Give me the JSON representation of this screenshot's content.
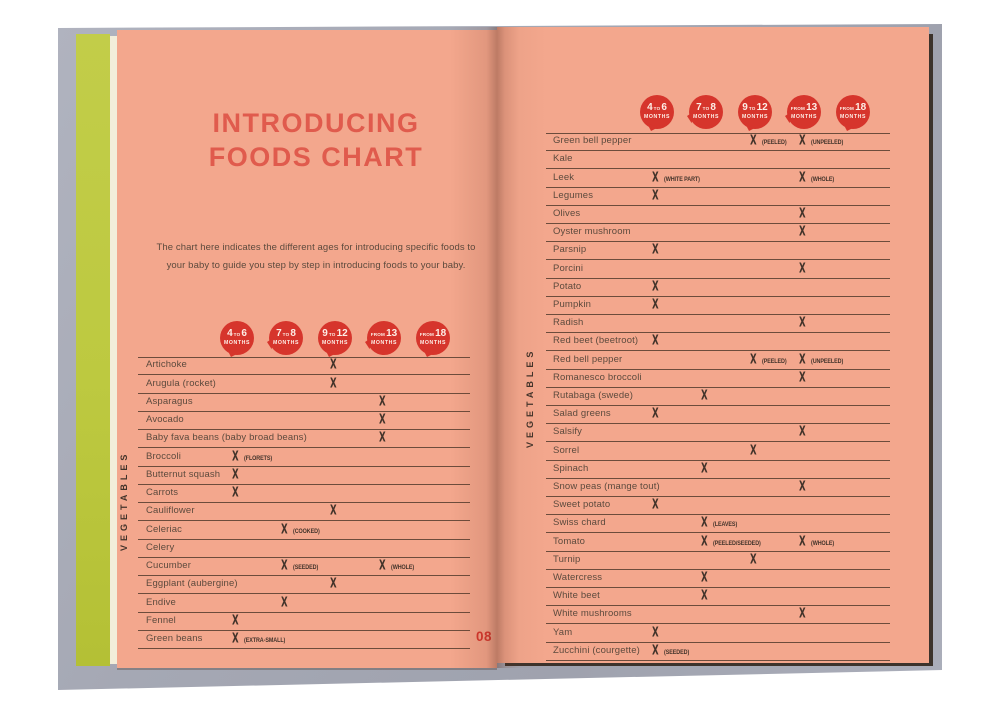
{
  "colors": {
    "cover_gray": "#a7aab6",
    "strip_green": "#bdc940",
    "cream": "#f2eeda",
    "page_salmon": "#f3a78d",
    "accent_red": "#d6352c",
    "title_red": "#e05b4d",
    "text_brown": "#5c4a3d",
    "ink": "#42332a"
  },
  "mark_symbol": "X",
  "book": {
    "left_page": {
      "title_line1": "INTRODUCING",
      "title_line2": "FOODS CHART",
      "intro_text": "The chart here indicates the different ages for introducing specific foods to your baby to guide you step by step in introducing foods to your baby.",
      "section_label": "VEGETABLES",
      "page_number": "08",
      "columns": [
        {
          "line1": "4 TO 6",
          "line2": "MONTHS"
        },
        {
          "line1": "7 TO 8",
          "line2": "MONTHS"
        },
        {
          "line1": "9 TO 12",
          "line2": "MONTHS"
        },
        {
          "line1": "FROM 13",
          "line2": "MONTHS"
        },
        {
          "line1": "FROM 18",
          "line2": "MONTHS"
        }
      ],
      "rows": [
        {
          "label": "Artichoke",
          "marks": [
            {
              "col": 2,
              "note": ""
            }
          ]
        },
        {
          "label": "Arugula (rocket)",
          "marks": [
            {
              "col": 2,
              "note": ""
            }
          ]
        },
        {
          "label": "Asparagus",
          "marks": [
            {
              "col": 3,
              "note": ""
            }
          ]
        },
        {
          "label": "Avocado",
          "marks": [
            {
              "col": 3,
              "note": ""
            }
          ]
        },
        {
          "label": "Baby fava beans (baby broad beans)",
          "marks": [
            {
              "col": 3,
              "note": ""
            }
          ]
        },
        {
          "label": "Broccoli",
          "marks": [
            {
              "col": 0,
              "note": "(FLORETS)"
            }
          ]
        },
        {
          "label": "Butternut squash",
          "marks": [
            {
              "col": 0,
              "note": ""
            }
          ]
        },
        {
          "label": "Carrots",
          "marks": [
            {
              "col": 0,
              "note": ""
            }
          ]
        },
        {
          "label": "Cauliflower",
          "marks": [
            {
              "col": 2,
              "note": ""
            }
          ]
        },
        {
          "label": "Celeriac",
          "marks": [
            {
              "col": 1,
              "note": "(COOKED)"
            }
          ]
        },
        {
          "label": "Celery",
          "marks": []
        },
        {
          "label": "Cucumber",
          "marks": [
            {
              "col": 1,
              "note": "(SEEDED)"
            },
            {
              "col": 3,
              "note": "(WHOLE)"
            }
          ]
        },
        {
          "label": "Eggplant (aubergine)",
          "marks": [
            {
              "col": 2,
              "note": ""
            }
          ]
        },
        {
          "label": "Endive",
          "marks": [
            {
              "col": 1,
              "note": ""
            }
          ]
        },
        {
          "label": "Fennel",
          "marks": [
            {
              "col": 0,
              "note": ""
            }
          ]
        },
        {
          "label": "Green beans",
          "marks": [
            {
              "col": 0,
              "note": "(EXTRA-SMALL)"
            }
          ]
        }
      ]
    },
    "right_page": {
      "section_label": "VEGETABLES",
      "columns": [
        {
          "line1": "4 TO 6",
          "line2": "MONTHS"
        },
        {
          "line1": "7 TO 8",
          "line2": "MONTHS"
        },
        {
          "line1": "9 TO 12",
          "line2": "MONTHS"
        },
        {
          "line1": "FROM 13",
          "line2": "MONTHS"
        },
        {
          "line1": "FROM 18",
          "line2": "MONTHS"
        }
      ],
      "rows": [
        {
          "label": "Green bell pepper",
          "marks": [
            {
              "col": 2,
              "note": "(PEELED)"
            },
            {
              "col": 3,
              "note": "(UNPEELED)"
            }
          ]
        },
        {
          "label": "Kale",
          "marks": []
        },
        {
          "label": "Leek",
          "marks": [
            {
              "col": 0,
              "note": "(WHITE PART)"
            },
            {
              "col": 3,
              "note": "(WHOLE)"
            }
          ]
        },
        {
          "label": "Legumes",
          "marks": [
            {
              "col": 0,
              "note": ""
            }
          ]
        },
        {
          "label": "Olives",
          "marks": [
            {
              "col": 3,
              "note": ""
            }
          ]
        },
        {
          "label": "Oyster mushroom",
          "marks": [
            {
              "col": 3,
              "note": ""
            }
          ]
        },
        {
          "label": "Parsnip",
          "marks": [
            {
              "col": 0,
              "note": ""
            }
          ]
        },
        {
          "label": "Porcini",
          "marks": [
            {
              "col": 3,
              "note": ""
            }
          ]
        },
        {
          "label": "Potato",
          "marks": [
            {
              "col": 0,
              "note": ""
            }
          ]
        },
        {
          "label": "Pumpkin",
          "marks": [
            {
              "col": 0,
              "note": ""
            }
          ]
        },
        {
          "label": "Radish",
          "marks": [
            {
              "col": 3,
              "note": ""
            }
          ]
        },
        {
          "label": "Red beet (beetroot)",
          "marks": [
            {
              "col": 0,
              "note": ""
            }
          ]
        },
        {
          "label": "Red bell pepper",
          "marks": [
            {
              "col": 2,
              "note": "(PEELED)"
            },
            {
              "col": 3,
              "note": "(UNPEELED)"
            }
          ]
        },
        {
          "label": "Romanesco broccoli",
          "marks": [
            {
              "col": 3,
              "note": ""
            }
          ]
        },
        {
          "label": "Rutabaga (swede)",
          "marks": [
            {
              "col": 1,
              "note": ""
            }
          ]
        },
        {
          "label": "Salad greens",
          "marks": [
            {
              "col": 0,
              "note": ""
            }
          ]
        },
        {
          "label": "Salsify",
          "marks": [
            {
              "col": 3,
              "note": ""
            }
          ]
        },
        {
          "label": "Sorrel",
          "marks": [
            {
              "col": 2,
              "note": ""
            }
          ]
        },
        {
          "label": "Spinach",
          "marks": [
            {
              "col": 1,
              "note": ""
            }
          ]
        },
        {
          "label": "Snow peas (mange tout)",
          "marks": [
            {
              "col": 3,
              "note": ""
            }
          ]
        },
        {
          "label": "Sweet potato",
          "marks": [
            {
              "col": 0,
              "note": ""
            }
          ]
        },
        {
          "label": "Swiss chard",
          "marks": [
            {
              "col": 1,
              "note": "(LEAVES)"
            }
          ]
        },
        {
          "label": "Tomato",
          "marks": [
            {
              "col": 1,
              "note": "(PEELED/SEEDED)"
            },
            {
              "col": 3,
              "note": "(WHOLE)"
            }
          ]
        },
        {
          "label": "Turnip",
          "marks": [
            {
              "col": 2,
              "note": ""
            }
          ]
        },
        {
          "label": "Watercress",
          "marks": [
            {
              "col": 1,
              "note": ""
            }
          ]
        },
        {
          "label": "White beet",
          "marks": [
            {
              "col": 1,
              "note": ""
            }
          ]
        },
        {
          "label": "White mushrooms",
          "marks": [
            {
              "col": 3,
              "note": ""
            }
          ]
        },
        {
          "label": "Yam",
          "marks": [
            {
              "col": 0,
              "note": ""
            }
          ]
        },
        {
          "label": "Zucchini (courgette)",
          "marks": [
            {
              "col": 0,
              "note": "(SEEDED)"
            }
          ]
        }
      ]
    }
  }
}
